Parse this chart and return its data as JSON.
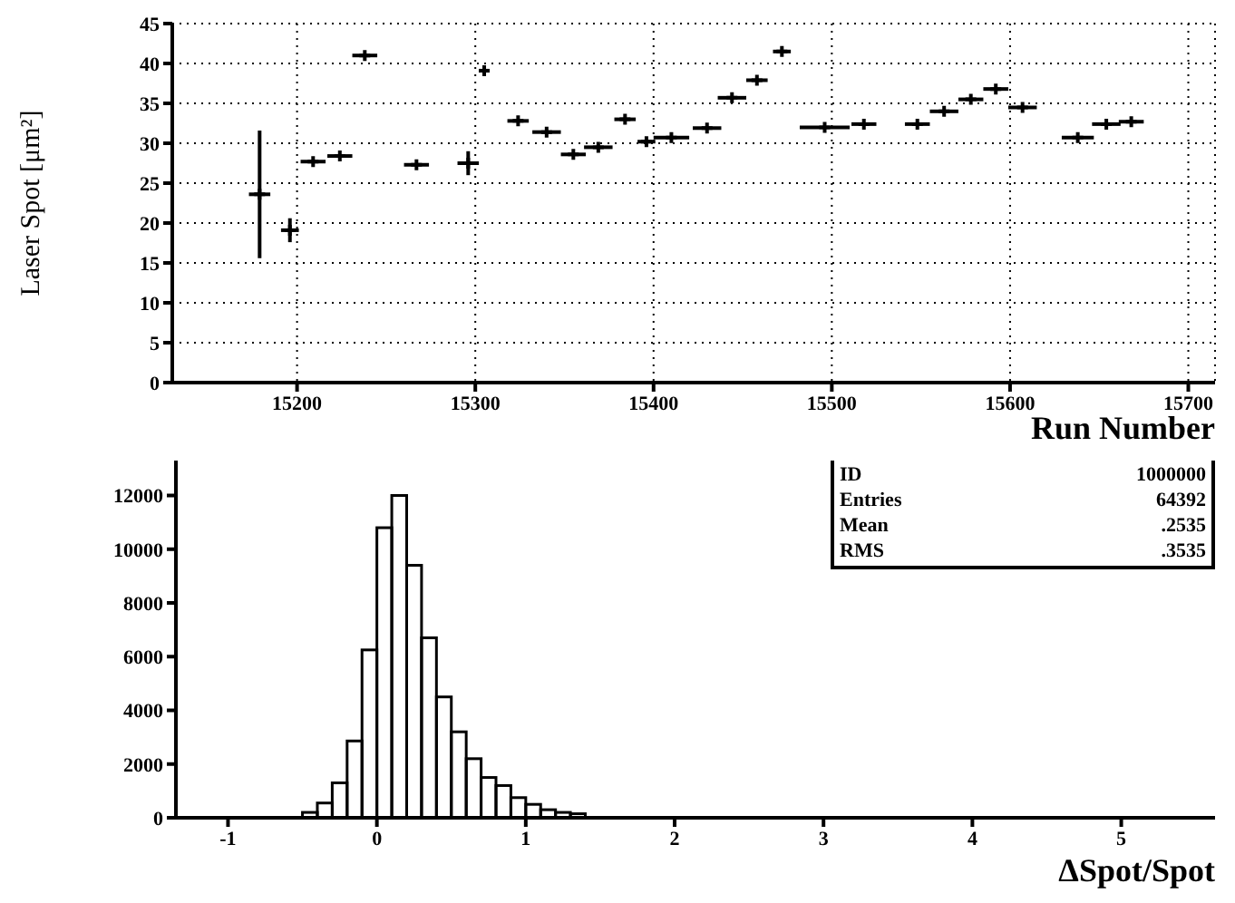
{
  "chart_data": [
    {
      "type": "scatter",
      "xlabel": "Run Number",
      "ylabel": "Laser Spot [μm²]",
      "xlim": [
        15130,
        15715
      ],
      "ylim": [
        0,
        45
      ],
      "xticks": [
        15200,
        15300,
        15400,
        15500,
        15600,
        15700
      ],
      "yticks": [
        0,
        5,
        10,
        15,
        20,
        25,
        30,
        35,
        40,
        45
      ],
      "grid": true,
      "marker": "cross",
      "x": [
        15179,
        15196,
        15209,
        15224,
        15238,
        15267,
        15296,
        15305,
        15324,
        15340,
        15355,
        15369,
        15384,
        15396,
        15410,
        15430,
        15444,
        15458,
        15472,
        15496,
        15518,
        15548,
        15563,
        15578,
        15592,
        15607,
        15638,
        15654,
        15668
      ],
      "series": [
        {
          "color": "#000000",
          "values": [
            23.6,
            19.1,
            27.7,
            28.4,
            41.0,
            27.3,
            27.5,
            39.1,
            32.8,
            31.4,
            28.6,
            29.5,
            33.0,
            30.2,
            30.7,
            31.9,
            35.7,
            37.9,
            41.5,
            32.0,
            32.4,
            32.4,
            34.0,
            35.5,
            36.8,
            34.5,
            30.7,
            32.4,
            32.7
          ],
          "xerrors": [
            6,
            5,
            7,
            7,
            7,
            7,
            6,
            3,
            6,
            8,
            7,
            8,
            6,
            5,
            10,
            8,
            8,
            6,
            5,
            14,
            7,
            7,
            8,
            7,
            7,
            8,
            9,
            8,
            7
          ],
          "errors": [
            8,
            1.5,
            null,
            null,
            null,
            null,
            1.5,
            null,
            null,
            null,
            null,
            null,
            null,
            null,
            null,
            null,
            null,
            null,
            null,
            null,
            null,
            null,
            null,
            null,
            null,
            null,
            null,
            null,
            null
          ]
        }
      ]
    },
    {
      "type": "histogram",
      "xlabel": "ΔSpot/Spot",
      "xlim": [
        -1.35,
        5.63
      ],
      "ylim": [
        0,
        13300
      ],
      "xticks": [
        -1,
        0,
        1,
        2,
        3,
        4,
        5
      ],
      "yticks": [
        0,
        2000,
        4000,
        6000,
        8000,
        10000,
        12000
      ],
      "color": "#000000",
      "bins": [
        -0.5,
        -0.4,
        -0.3,
        -0.2,
        -0.1,
        0,
        0.1,
        0.2,
        0.3,
        0.4,
        0.5,
        0.6,
        0.7,
        0.8,
        0.9,
        1.0,
        1.1,
        1.2,
        1.3,
        1.4
      ],
      "values": [
        200,
        550,
        1300,
        2860,
        6250,
        10800,
        12000,
        9400,
        6700,
        4500,
        3200,
        2200,
        1500,
        1200,
        750,
        500,
        300,
        200,
        150
      ],
      "annotations": [
        "ID",
        "1000000",
        "Entries",
        "64392",
        "Mean",
        ".2535",
        "RMS",
        ".3535"
      ]
    }
  ]
}
